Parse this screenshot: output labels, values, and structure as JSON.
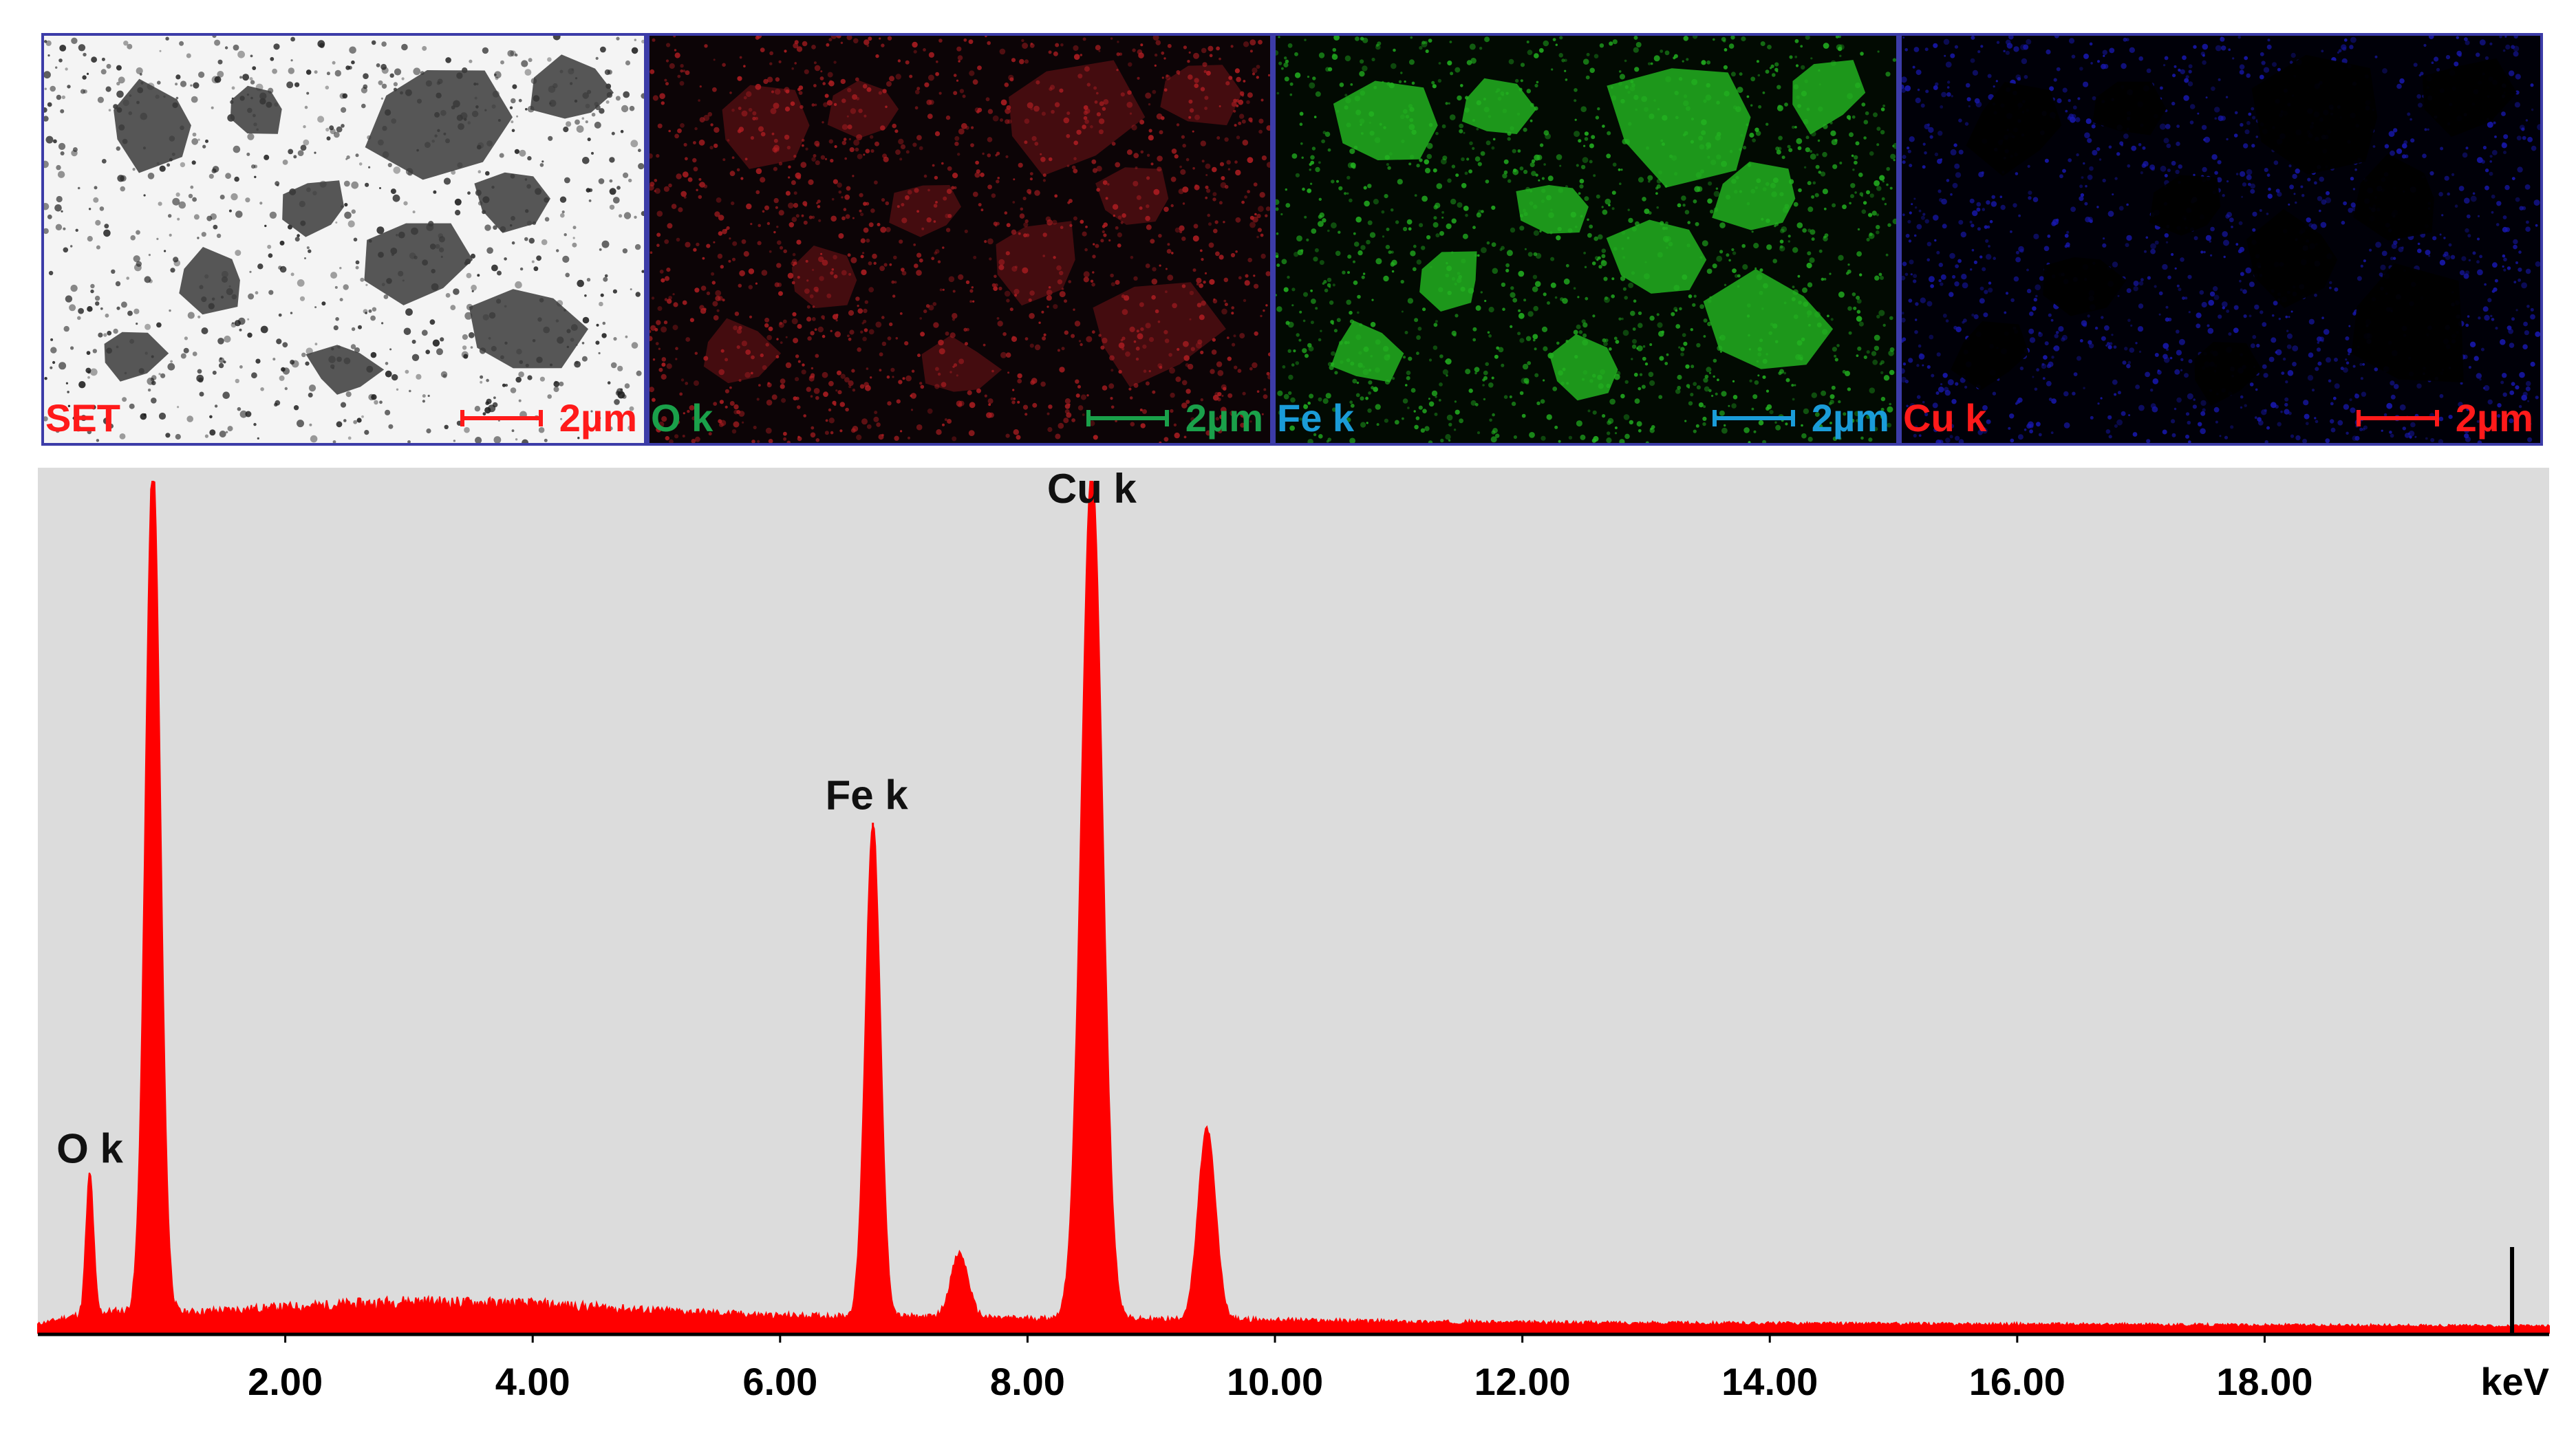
{
  "maps": [
    {
      "label": "SET",
      "label_color": "#ff1a1a",
      "scale_text": "2µm",
      "scale_color": "#ff1a1a",
      "background": "#f4f4f4",
      "signal_color": "#1e1e1e"
    },
    {
      "label": "O k",
      "label_color": "#1aa04a",
      "scale_text": "2µm",
      "scale_color": "#1aa04a",
      "background": "#0c0406",
      "signal_color": "#b01e22"
    },
    {
      "label": "Fe k",
      "label_color": "#1a9cd8",
      "scale_text": "2µm",
      "scale_color": "#1a9cd8",
      "background": "#020a02",
      "signal_color": "#22b020"
    },
    {
      "label": "Cu k",
      "label_color": "#ff1a1a",
      "scale_text": "2µm",
      "scale_color": "#ff1a1a",
      "background": "#000008",
      "signal_color": "#1818b0"
    }
  ],
  "chart_data": {
    "type": "area",
    "title": "",
    "xlabel": "keV",
    "ylabel": "",
    "xlim": [
      0,
      20.3
    ],
    "ylim": [
      0,
      100
    ],
    "x_ticks": [
      2,
      4,
      6,
      8,
      10,
      12,
      14,
      16,
      18
    ],
    "x_tick_labels": [
      "2.00",
      "4.00",
      "6.00",
      "8.00",
      "10.00",
      "12.00",
      "14.00",
      "16.00",
      "18.00"
    ],
    "x_unit_label": "keV",
    "grid": false,
    "fill_color": "#ff0000",
    "plot_background": "#dcdcdc",
    "baseline": [
      [
        0.0,
        1.0
      ],
      [
        0.3,
        2.0
      ],
      [
        0.6,
        2.5
      ],
      [
        1.2,
        2.4
      ],
      [
        2.0,
        3.0
      ],
      [
        3.0,
        3.7
      ],
      [
        4.0,
        3.4
      ],
      [
        5.0,
        2.6
      ],
      [
        6.0,
        2.0
      ],
      [
        7.0,
        1.9
      ],
      [
        8.0,
        1.7
      ],
      [
        9.0,
        1.6
      ],
      [
        10.0,
        1.5
      ],
      [
        11.0,
        1.3
      ],
      [
        12.0,
        1.2
      ],
      [
        14.0,
        1.1
      ],
      [
        16.0,
        1.0
      ],
      [
        18.0,
        0.9
      ],
      [
        20.0,
        0.8
      ],
      [
        20.3,
        0.8
      ]
    ],
    "peaks": [
      {
        "energy": 0.42,
        "height": 16.5,
        "width": 0.03
      },
      {
        "energy": 0.93,
        "height": 100,
        "width": 0.06
      },
      {
        "energy": 6.75,
        "height": 58,
        "width": 0.06
      },
      {
        "energy": 7.45,
        "height": 7.5,
        "width": 0.07
      },
      {
        "energy": 8.52,
        "height": 100,
        "width": 0.085
      },
      {
        "energy": 9.45,
        "height": 22.5,
        "width": 0.07
      }
    ],
    "peak_labels": [
      {
        "text": "O k",
        "x": 0.42,
        "y": 20
      },
      {
        "text": "Fe k",
        "x": 6.7,
        "y": 61.5
      },
      {
        "text": "Cu k",
        "x": 8.52,
        "y": 97.5
      }
    ],
    "cursor_marker": 20.0
  }
}
